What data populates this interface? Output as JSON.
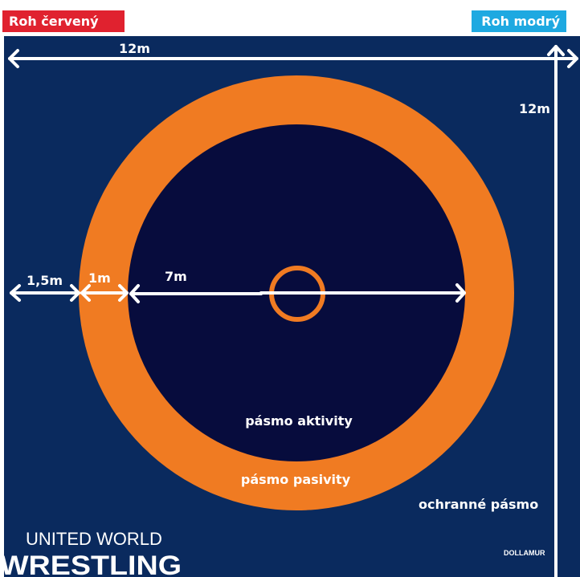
{
  "corners": {
    "red": {
      "label": "Roh červený",
      "color": "#e0222f"
    },
    "blue": {
      "label": "Roh modrý",
      "color": "#1ea9e1"
    }
  },
  "dimensions": {
    "top_width": "12m",
    "right_height": "12m",
    "protection": "1,5m",
    "passivity": "1m",
    "radius": "7m"
  },
  "zones": {
    "activity": "pásmo aktivity",
    "passivity": "pásmo pasivity",
    "protection": "ochranné pásmo"
  },
  "branding": {
    "org_line1": "UNITED WORLD",
    "org_line2": "WRESTLING",
    "sponsor": "DOLLAMUR"
  },
  "colors": {
    "mat": "#0a2a5e",
    "activity_zone": "#070c3d",
    "passivity_zone": "#f07b22",
    "lines": "#ffffff"
  }
}
